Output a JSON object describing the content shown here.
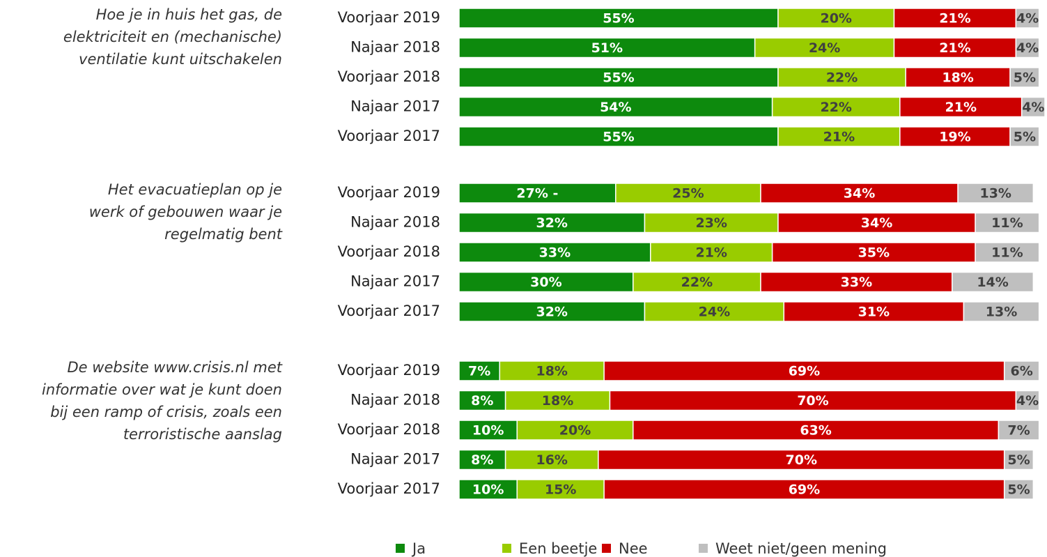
{
  "chart_data": {
    "type": "bar",
    "orientation": "horizontal",
    "stacked": true,
    "series": [
      {
        "name": "Ja",
        "color": "#0d8a0d"
      },
      {
        "name": "Een beetje",
        "color": "#99cc00"
      },
      {
        "name": "Nee",
        "color": "#cc0000"
      },
      {
        "name": "Weet niet/geen mening",
        "color": "#bfbfbf"
      }
    ],
    "groups": [
      {
        "title": [
          "Hoe je in huis het gas, de",
          "elektriciteit en (mechanische)",
          "ventilatie kunt uitschakelen"
        ],
        "categories": [
          "Voorjaar 2019",
          "Najaar 2018",
          "Voorjaar 2018",
          "Najaar 2017",
          "Voorjaar 2017"
        ],
        "series": [
          {
            "values": [
              55,
              51,
              55,
              54,
              55
            ],
            "value_labels": [
              "55%",
              "51%",
              "55%",
              "54%",
              "55%"
            ]
          },
          {
            "values": [
              20,
              24,
              22,
              22,
              21
            ],
            "value_labels": [
              "20%",
              "24%",
              "22%",
              "22%",
              "21%"
            ]
          },
          {
            "values": [
              21,
              21,
              18,
              21,
              19
            ],
            "value_labels": [
              "21%",
              "21%",
              "18%",
              "21%",
              "19%"
            ]
          },
          {
            "values": [
              4,
              4,
              5,
              4,
              5
            ],
            "value_labels": [
              "4%",
              "4%",
              "5%",
              "4%",
              "5%"
            ]
          }
        ]
      },
      {
        "title": [
          "Het evacuatieplan op je",
          "werk of gebouwen waar je",
          "regelmatig bent"
        ],
        "categories": [
          "Voorjaar 2019",
          "Najaar 2018",
          "Voorjaar 2018",
          "Najaar 2017",
          "Voorjaar 2017"
        ],
        "series": [
          {
            "values": [
              27,
              32,
              33,
              30,
              32
            ],
            "value_labels": [
              "27% -",
              "32%",
              "33%",
              "30%",
              "32%"
            ]
          },
          {
            "values": [
              25,
              23,
              21,
              22,
              24
            ],
            "value_labels": [
              "25%",
              "23%",
              "21%",
              "22%",
              "24%"
            ]
          },
          {
            "values": [
              34,
              34,
              35,
              33,
              31
            ],
            "value_labels": [
              "34%",
              "34%",
              "35%",
              "33%",
              "31%"
            ]
          },
          {
            "values": [
              13,
              11,
              11,
              14,
              13
            ],
            "value_labels": [
              "13%",
              "11%",
              "11%",
              "14%",
              "13%"
            ]
          }
        ]
      },
      {
        "title": [
          "De website www.crisis.nl met",
          "informatie over wat je kunt doen",
          "bij een ramp of crisis, zoals een",
          "terroristische aanslag"
        ],
        "categories": [
          "Voorjaar 2019",
          "Najaar 2018",
          "Voorjaar 2018",
          "Najaar 2017",
          "Voorjaar 2017"
        ],
        "series": [
          {
            "values": [
              7,
              8,
              10,
              8,
              10
            ],
            "value_labels": [
              "7%",
              "8%",
              "10%",
              "8%",
              "10%"
            ]
          },
          {
            "values": [
              18,
              18,
              20,
              16,
              15
            ],
            "value_labels": [
              "18%",
              "18%",
              "20%",
              "16%",
              "15%"
            ]
          },
          {
            "values": [
              69,
              70,
              63,
              70,
              69
            ],
            "value_labels": [
              "69%",
              "70%",
              "63%",
              "70%",
              "69%"
            ]
          },
          {
            "values": [
              6,
              4,
              7,
              5,
              5
            ],
            "value_labels": [
              "6%",
              "4%",
              "7%",
              "5%",
              "5%"
            ]
          }
        ]
      }
    ]
  }
}
